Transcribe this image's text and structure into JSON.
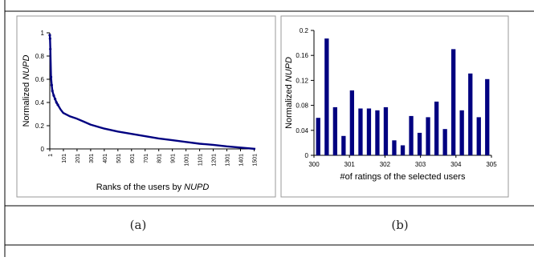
{
  "chart_data": [
    {
      "panel_label": "(a)",
      "type": "line",
      "ylabel_prefix": "Normalized ",
      "ylabel_italic": "NUPD",
      "xlabel_prefix": "Ranks of the users by ",
      "xlabel_italic": "NUPD",
      "ylim": [
        0,
        1
      ],
      "yticks": [
        "0",
        "0.2",
        "0.4",
        "0.6",
        "0.8",
        "1"
      ],
      "xlim": [
        1,
        1510
      ],
      "xticks": [
        "1",
        "101",
        "201",
        "301",
        "401",
        "501",
        "601",
        "701",
        "801",
        "901",
        "1001",
        "1101",
        "1201",
        "1301",
        "1401",
        "1501"
      ],
      "grid": false,
      "series": [
        {
          "color": "#000080",
          "x": [
            1,
            3,
            5,
            10,
            15,
            20,
            30,
            40,
            50,
            60,
            80,
            100,
            150,
            200,
            250,
            300,
            400,
            500,
            600,
            700,
            800,
            900,
            1000,
            1100,
            1200,
            1300,
            1400,
            1510
          ],
          "y": [
            0.98,
            0.95,
            0.86,
            0.62,
            0.55,
            0.5,
            0.46,
            0.43,
            0.4,
            0.38,
            0.34,
            0.31,
            0.28,
            0.26,
            0.235,
            0.21,
            0.175,
            0.15,
            0.13,
            0.11,
            0.09,
            0.075,
            0.06,
            0.045,
            0.035,
            0.022,
            0.012,
            0.0
          ]
        }
      ]
    },
    {
      "panel_label": "(b)",
      "type": "bar",
      "ylabel_prefix": "Normalized ",
      "ylabel_italic": "NUPD",
      "xlabel": "#of ratings of the selected users",
      "ylim": [
        0,
        0.2
      ],
      "yticks": [
        "0",
        "0.04",
        "0.08",
        "0.12",
        "0.16",
        "0.2"
      ],
      "xticks": [
        "300",
        "301",
        "302",
        "303",
        "304",
        "305"
      ],
      "color": "#000080",
      "values": [
        0.06,
        0.187,
        0.077,
        0.031,
        0.104,
        0.075,
        0.075,
        0.072,
        0.077,
        0.024,
        0.016,
        0.063,
        0.036,
        0.061,
        0.086,
        0.042,
        0.17,
        0.072,
        0.131,
        0.061,
        0.122
      ]
    }
  ]
}
